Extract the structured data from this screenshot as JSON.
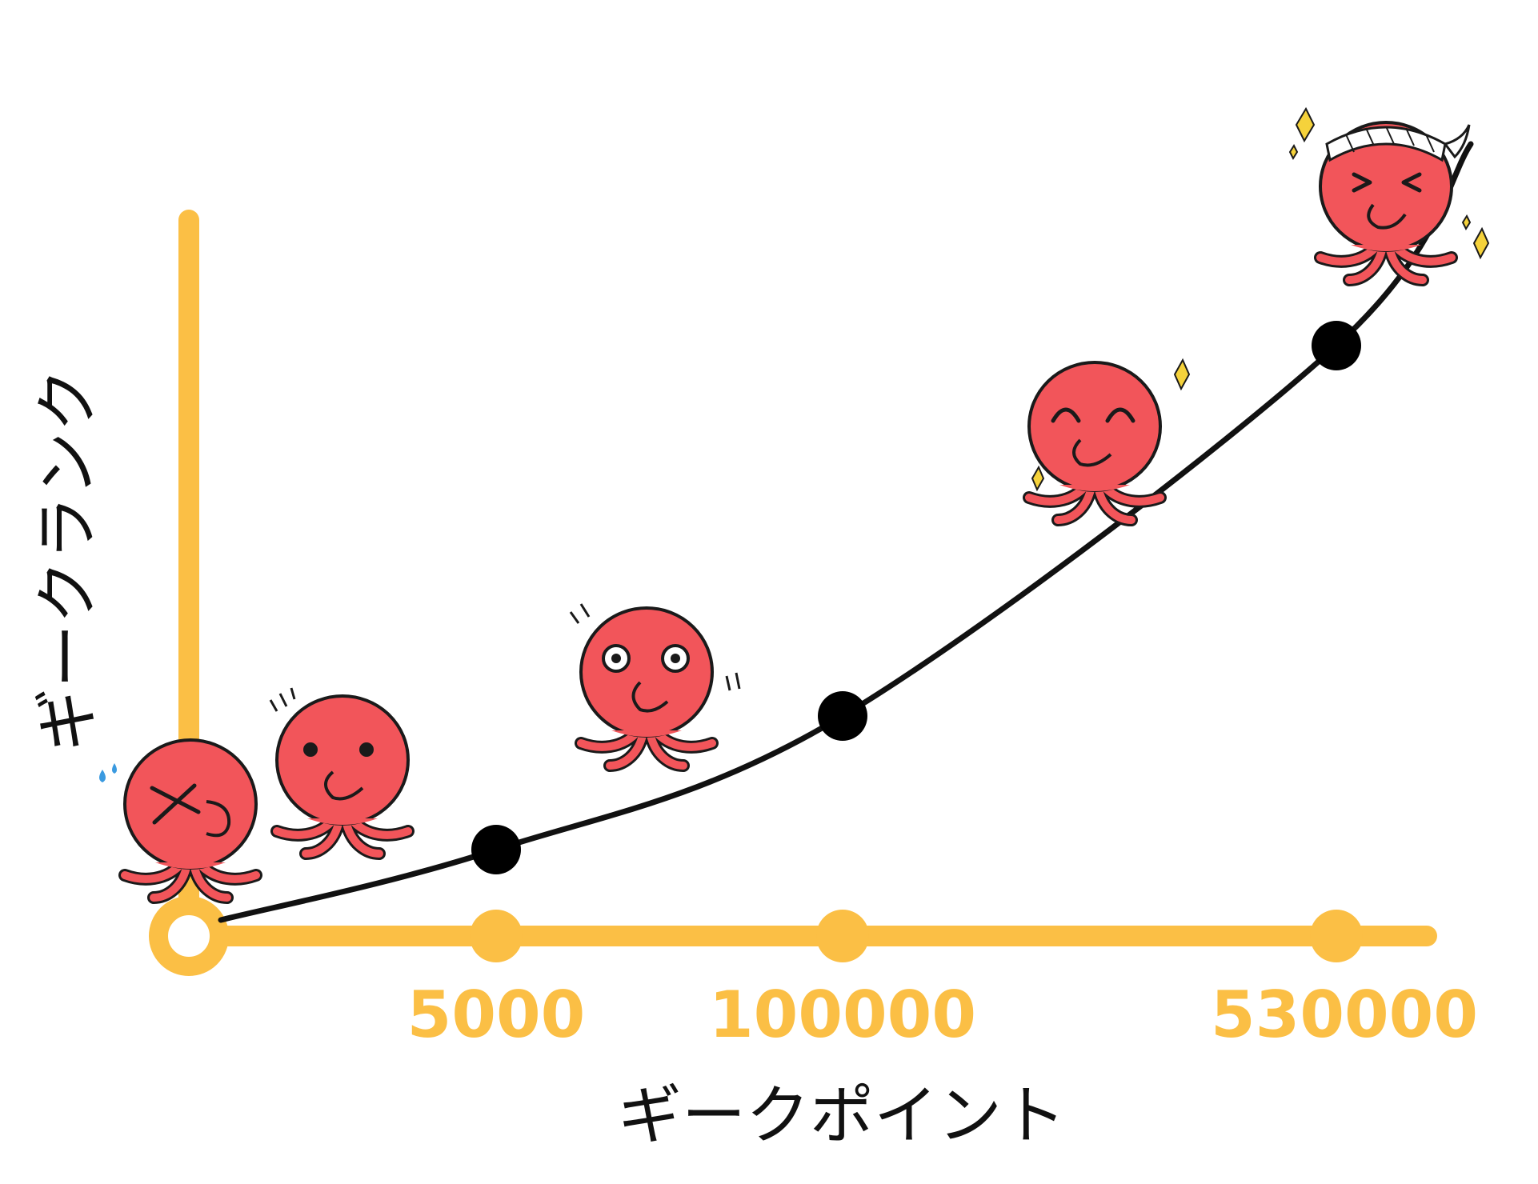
{
  "chart_data": {
    "type": "line",
    "xlabel": "ギークポイント",
    "ylabel": "ギークランク",
    "x_ticks": [
      "5000",
      "100000",
      "530000"
    ],
    "points": [
      {
        "x_index": 0,
        "label": "",
        "rank": 0
      },
      {
        "x_index": 1,
        "label": "5000",
        "rank": 1
      },
      {
        "x_index": 2,
        "label": "100000",
        "rank": 2
      },
      {
        "x_index": 3,
        "label": "530000",
        "rank": 3
      }
    ],
    "grid": false,
    "legend": "none"
  },
  "colors": {
    "axis": "#FBBF45",
    "curve": "#111111",
    "marker": "#000000",
    "octopus_body": "#F2555A",
    "octopus_outline": "#1A1A1A",
    "sparkle": "#F5D23B",
    "sweat": "#3A9AE0"
  },
  "mascots": [
    {
      "name": "octopus-struggling-icon",
      "expression": "squint-sweat"
    },
    {
      "name": "octopus-neutral-icon",
      "expression": "dot-eyes"
    },
    {
      "name": "octopus-surprised-icon",
      "expression": "round-eyes"
    },
    {
      "name": "octopus-happy-icon",
      "expression": "smile-eyes"
    },
    {
      "name": "octopus-elated-icon",
      "expression": "headband-squeeze"
    }
  ]
}
